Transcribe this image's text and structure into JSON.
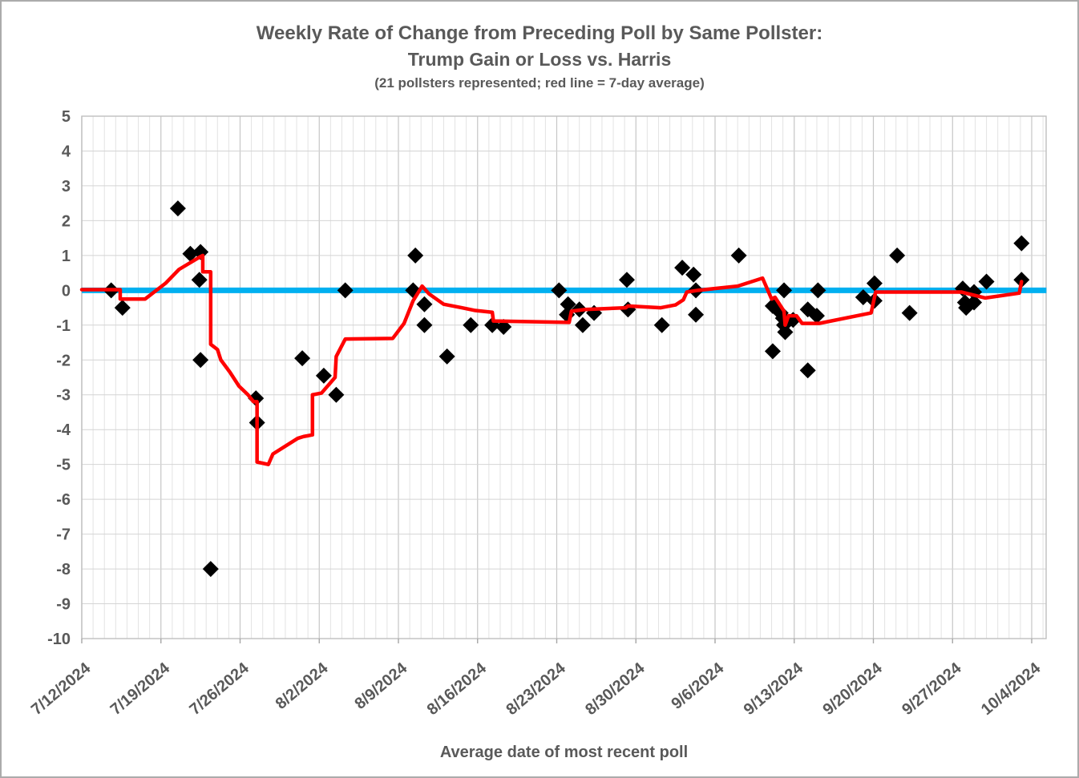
{
  "title": {
    "line1": "Weekly Rate of Change from Preceding Poll by Same Pollster:",
    "line2": "Trump Gain or Loss vs. Harris",
    "subtitle": "(21 pollsters represented; red line = 7-day average)"
  },
  "x_axis": {
    "title": "Average date of most recent poll",
    "tick_labels": [
      "7/12/2024",
      "7/19/2024",
      "7/26/2024",
      "8/2/2024",
      "8/9/2024",
      "8/16/2024",
      "8/23/2024",
      "8/30/2024",
      "9/6/2024",
      "9/13/2024",
      "9/20/2024",
      "9/27/2024",
      "10/4/2024"
    ],
    "tick_days": [
      0,
      7,
      14,
      21,
      28,
      35,
      42,
      49,
      56,
      63,
      70,
      77,
      84
    ]
  },
  "y_axis": {
    "tick_labels": [
      "5",
      "4",
      "3",
      "2",
      "1",
      "0",
      "-1",
      "-2",
      "-3",
      "-4",
      "-5",
      "-6",
      "-7",
      "-8",
      "-9",
      "-10"
    ],
    "tick_values": [
      5,
      4,
      3,
      2,
      1,
      0,
      -1,
      -2,
      -3,
      -4,
      -5,
      -6,
      -7,
      -8,
      -9,
      -10
    ]
  },
  "colors": {
    "text": "#595959",
    "grid_minor": "#e3e3e3",
    "grid_weekly": "#c6c6c6",
    "grid_horizontal": "#d4d4d4",
    "plot_border": "#bfbfbf",
    "axis_tick": "#a6a6a6",
    "scatter": "#000000",
    "average_line": "#ff0000",
    "zero_line": "#00b0f0"
  },
  "chart_data": {
    "type": "scatter",
    "title": "Weekly Rate of Change from Preceding Poll by Same Pollster: Trump Gain or Loss vs. Harris",
    "subtitle": "(21 pollsters represented; red line = 7-day average)",
    "xlabel": "Average date of most recent poll",
    "x_unit": "days after 7/12/2024",
    "x_tick_labels": [
      "7/12/2024",
      "7/19/2024",
      "7/26/2024",
      "8/2/2024",
      "8/9/2024",
      "8/16/2024",
      "8/23/2024",
      "8/30/2024",
      "9/6/2024",
      "9/13/2024",
      "9/20/2024",
      "9/27/2024",
      "10/4/2024"
    ],
    "x_tick_days": [
      0,
      7,
      14,
      21,
      28,
      35,
      42,
      49,
      56,
      63,
      70,
      77,
      84
    ],
    "ylim": [
      -10,
      5
    ],
    "xlim_days": [
      0,
      85.3
    ],
    "grid": {
      "horizontal_step": 1,
      "vertical_minor_days": 1,
      "vertical_major_days": 7
    },
    "legend": "none",
    "series": [
      {
        "name": "pollster_weekly_changes",
        "type": "scatter",
        "marker": "diamond",
        "color": "#000000",
        "points": [
          [
            2.6,
            0
          ],
          [
            3.6,
            -0.5
          ],
          [
            8.5,
            2.35
          ],
          [
            9.6,
            1.05
          ],
          [
            10.4,
            0.3
          ],
          [
            10.5,
            1.1
          ],
          [
            10.5,
            -2
          ],
          [
            11.4,
            -8
          ],
          [
            15.4,
            -3.1
          ],
          [
            15.5,
            -3.8
          ],
          [
            19.5,
            -1.95
          ],
          [
            21.4,
            -2.45
          ],
          [
            22.5,
            -3
          ],
          [
            23.3,
            0
          ],
          [
            29.3,
            0
          ],
          [
            29.5,
            1
          ],
          [
            30.3,
            -0.4
          ],
          [
            30.3,
            -1
          ],
          [
            32.3,
            -1.9
          ],
          [
            34.4,
            -1
          ],
          [
            36.3,
            -1
          ],
          [
            37.3,
            -1.05
          ],
          [
            42.2,
            0
          ],
          [
            42.9,
            -0.7
          ],
          [
            43,
            -0.4
          ],
          [
            44,
            -0.55
          ],
          [
            44.3,
            -1
          ],
          [
            45.3,
            -0.65
          ],
          [
            48.2,
            0.3
          ],
          [
            48.3,
            -0.55
          ],
          [
            51.3,
            -1
          ],
          [
            53.1,
            0.65
          ],
          [
            54.1,
            0.45
          ],
          [
            54.3,
            0
          ],
          [
            54.3,
            -0.7
          ],
          [
            58.1,
            1
          ],
          [
            61.1,
            -0.45
          ],
          [
            61.1,
            -1.75
          ],
          [
            61.8,
            -0.65
          ],
          [
            62,
            -0.8
          ],
          [
            62.1,
            0
          ],
          [
            62.1,
            -1
          ],
          [
            62.2,
            -1.2
          ],
          [
            62.9,
            -0.85
          ],
          [
            64.2,
            -0.55
          ],
          [
            64.2,
            -2.3
          ],
          [
            65,
            -0.73
          ],
          [
            65.1,
            0
          ],
          [
            69.1,
            -0.2
          ],
          [
            70.1,
            0.2
          ],
          [
            70.1,
            -0.3
          ],
          [
            72.1,
            1
          ],
          [
            73.2,
            -0.65
          ],
          [
            77.9,
            0.05
          ],
          [
            78.1,
            -0.35
          ],
          [
            78.2,
            -0.5
          ],
          [
            78.9,
            -0.05
          ],
          [
            78.9,
            -0.35
          ],
          [
            80,
            0.25
          ],
          [
            83.1,
            1.35
          ],
          [
            83.1,
            0.3
          ]
        ]
      },
      {
        "name": "seven_day_average",
        "type": "line",
        "color": "#ff0000",
        "width": 4.5,
        "points": [
          [
            0,
            0.02
          ],
          [
            3.4,
            0.02
          ],
          [
            3.4,
            -0.25
          ],
          [
            5.6,
            -0.25
          ],
          [
            7.4,
            0.2
          ],
          [
            8.6,
            0.6
          ],
          [
            10.4,
            0.95
          ],
          [
            10.7,
            1
          ],
          [
            10.7,
            0.53
          ],
          [
            11.4,
            0.53
          ],
          [
            11.4,
            -1.55
          ],
          [
            12,
            -1.7
          ],
          [
            12.3,
            -2
          ],
          [
            13.1,
            -2.35
          ],
          [
            13.9,
            -2.75
          ],
          [
            14.7,
            -3
          ],
          [
            15.2,
            -3.2
          ],
          [
            15.5,
            -3.2
          ],
          [
            15.5,
            -4.93
          ],
          [
            16.5,
            -5
          ],
          [
            16.9,
            -4.7
          ],
          [
            19.1,
            -4.25
          ],
          [
            19.6,
            -4.2
          ],
          [
            20.4,
            -4.15
          ],
          [
            20.4,
            -3
          ],
          [
            21.2,
            -2.95
          ],
          [
            22.4,
            -2.5
          ],
          [
            22.5,
            -1.9
          ],
          [
            23.3,
            -1.4
          ],
          [
            27.5,
            -1.38
          ],
          [
            28.5,
            -0.95
          ],
          [
            29.3,
            -0.3
          ],
          [
            30.1,
            0.12
          ],
          [
            30.7,
            -0.1
          ],
          [
            32,
            -0.4
          ],
          [
            33.6,
            -0.5
          ],
          [
            34.8,
            -0.58
          ],
          [
            36.3,
            -0.63
          ],
          [
            36.4,
            -0.88
          ],
          [
            43.1,
            -0.92
          ],
          [
            43.3,
            -0.6
          ],
          [
            44.5,
            -0.55
          ],
          [
            48.1,
            -0.5
          ],
          [
            48.3,
            -0.45
          ],
          [
            51.2,
            -0.5
          ],
          [
            52.5,
            -0.42
          ],
          [
            53.2,
            -0.27
          ],
          [
            53.5,
            -0.05
          ],
          [
            54.5,
            0
          ],
          [
            58,
            0.12
          ],
          [
            60.2,
            0.35
          ],
          [
            61,
            -0.25
          ],
          [
            61.3,
            -0.2
          ],
          [
            62.1,
            -0.6
          ],
          [
            62.2,
            -1
          ],
          [
            62.5,
            -0.73
          ],
          [
            63.2,
            -0.73
          ],
          [
            63.7,
            -0.95
          ],
          [
            65.2,
            -0.95
          ],
          [
            69.8,
            -0.65
          ],
          [
            70.2,
            -0.05
          ],
          [
            77.8,
            -0.05
          ],
          [
            79.9,
            -0.22
          ],
          [
            82.9,
            -0.08
          ],
          [
            83.1,
            0.25
          ]
        ]
      },
      {
        "name": "zero_baseline",
        "type": "line",
        "color": "#00b0f0",
        "width": 7,
        "points": [
          [
            0,
            0
          ],
          [
            85.3,
            0
          ]
        ]
      }
    ]
  }
}
